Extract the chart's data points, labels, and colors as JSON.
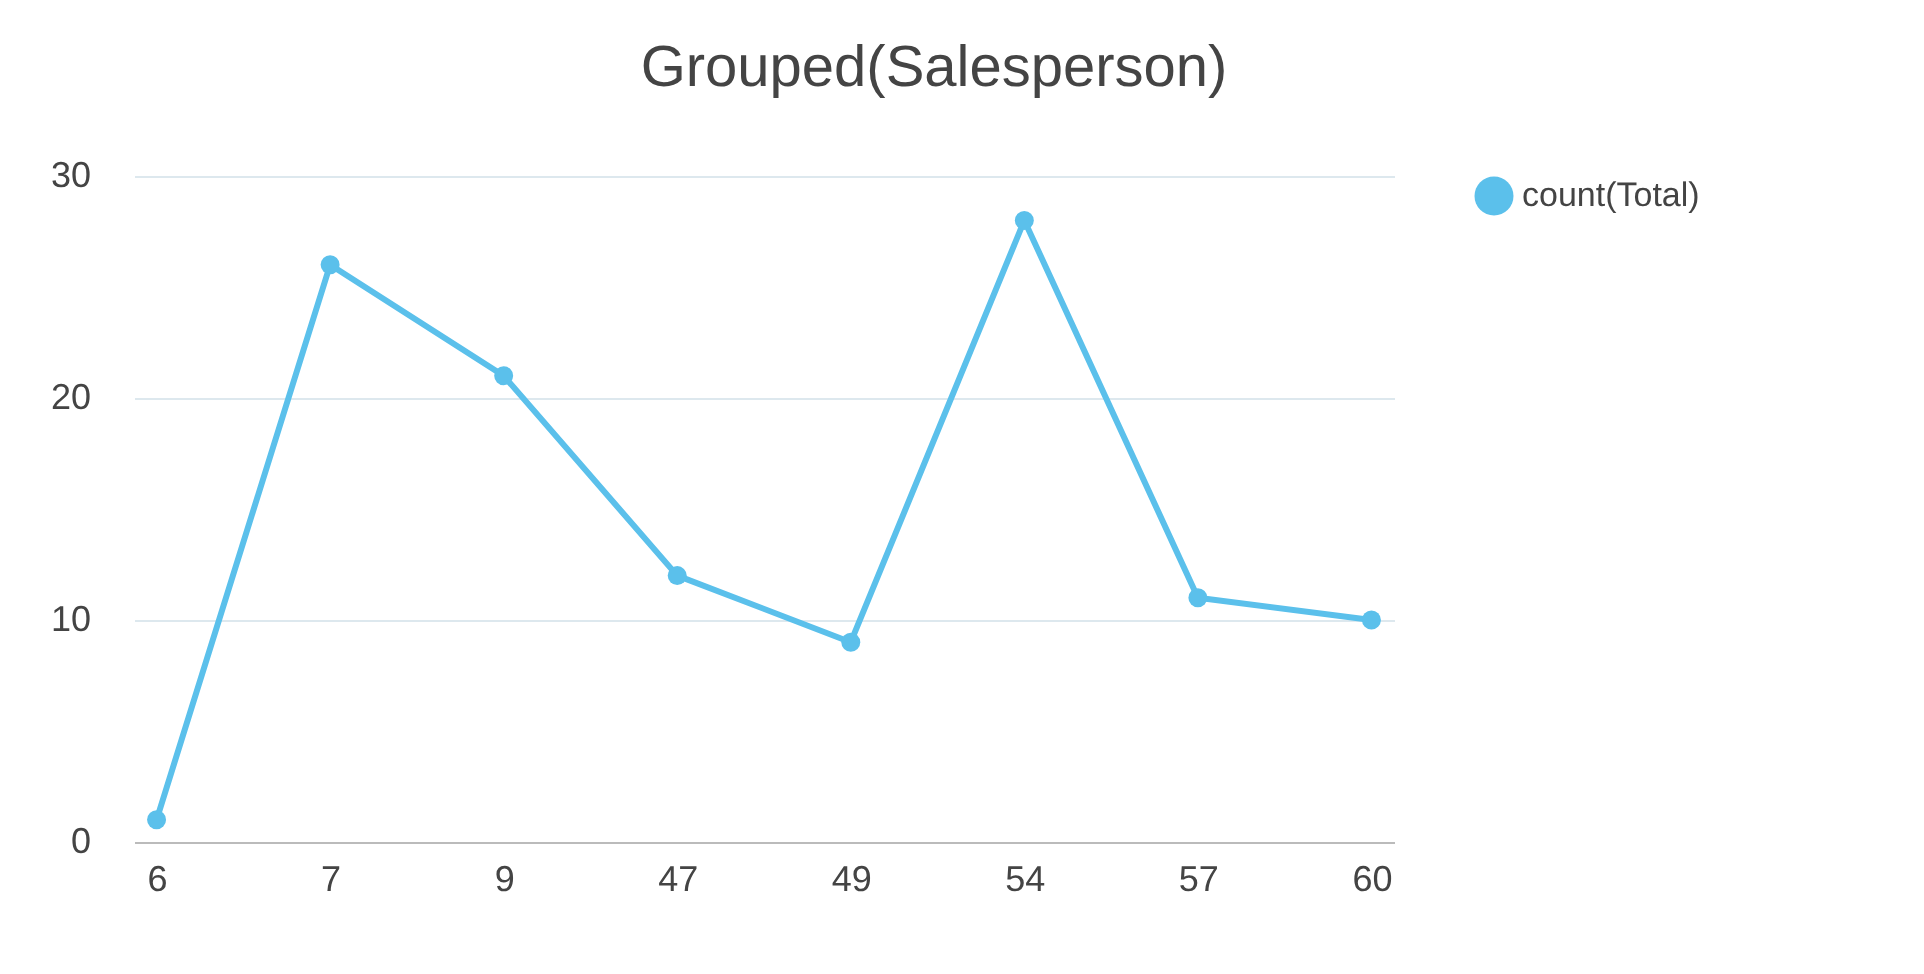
{
  "chart_data": {
    "type": "line",
    "title": "Grouped(Salesperson)",
    "categories": [
      "6",
      "7",
      "9",
      "47",
      "49",
      "54",
      "57",
      "60"
    ],
    "series": [
      {
        "name": "count(Total)",
        "color": "#5bc0eb",
        "values": [
          1,
          26,
          21,
          12,
          9,
          28,
          11,
          10
        ]
      }
    ],
    "ylim": [
      0,
      30
    ],
    "yticks": [
      0,
      10,
      20,
      30
    ],
    "grid": "y",
    "legend": "right",
    "marker": "circle",
    "line_style": "solid"
  }
}
